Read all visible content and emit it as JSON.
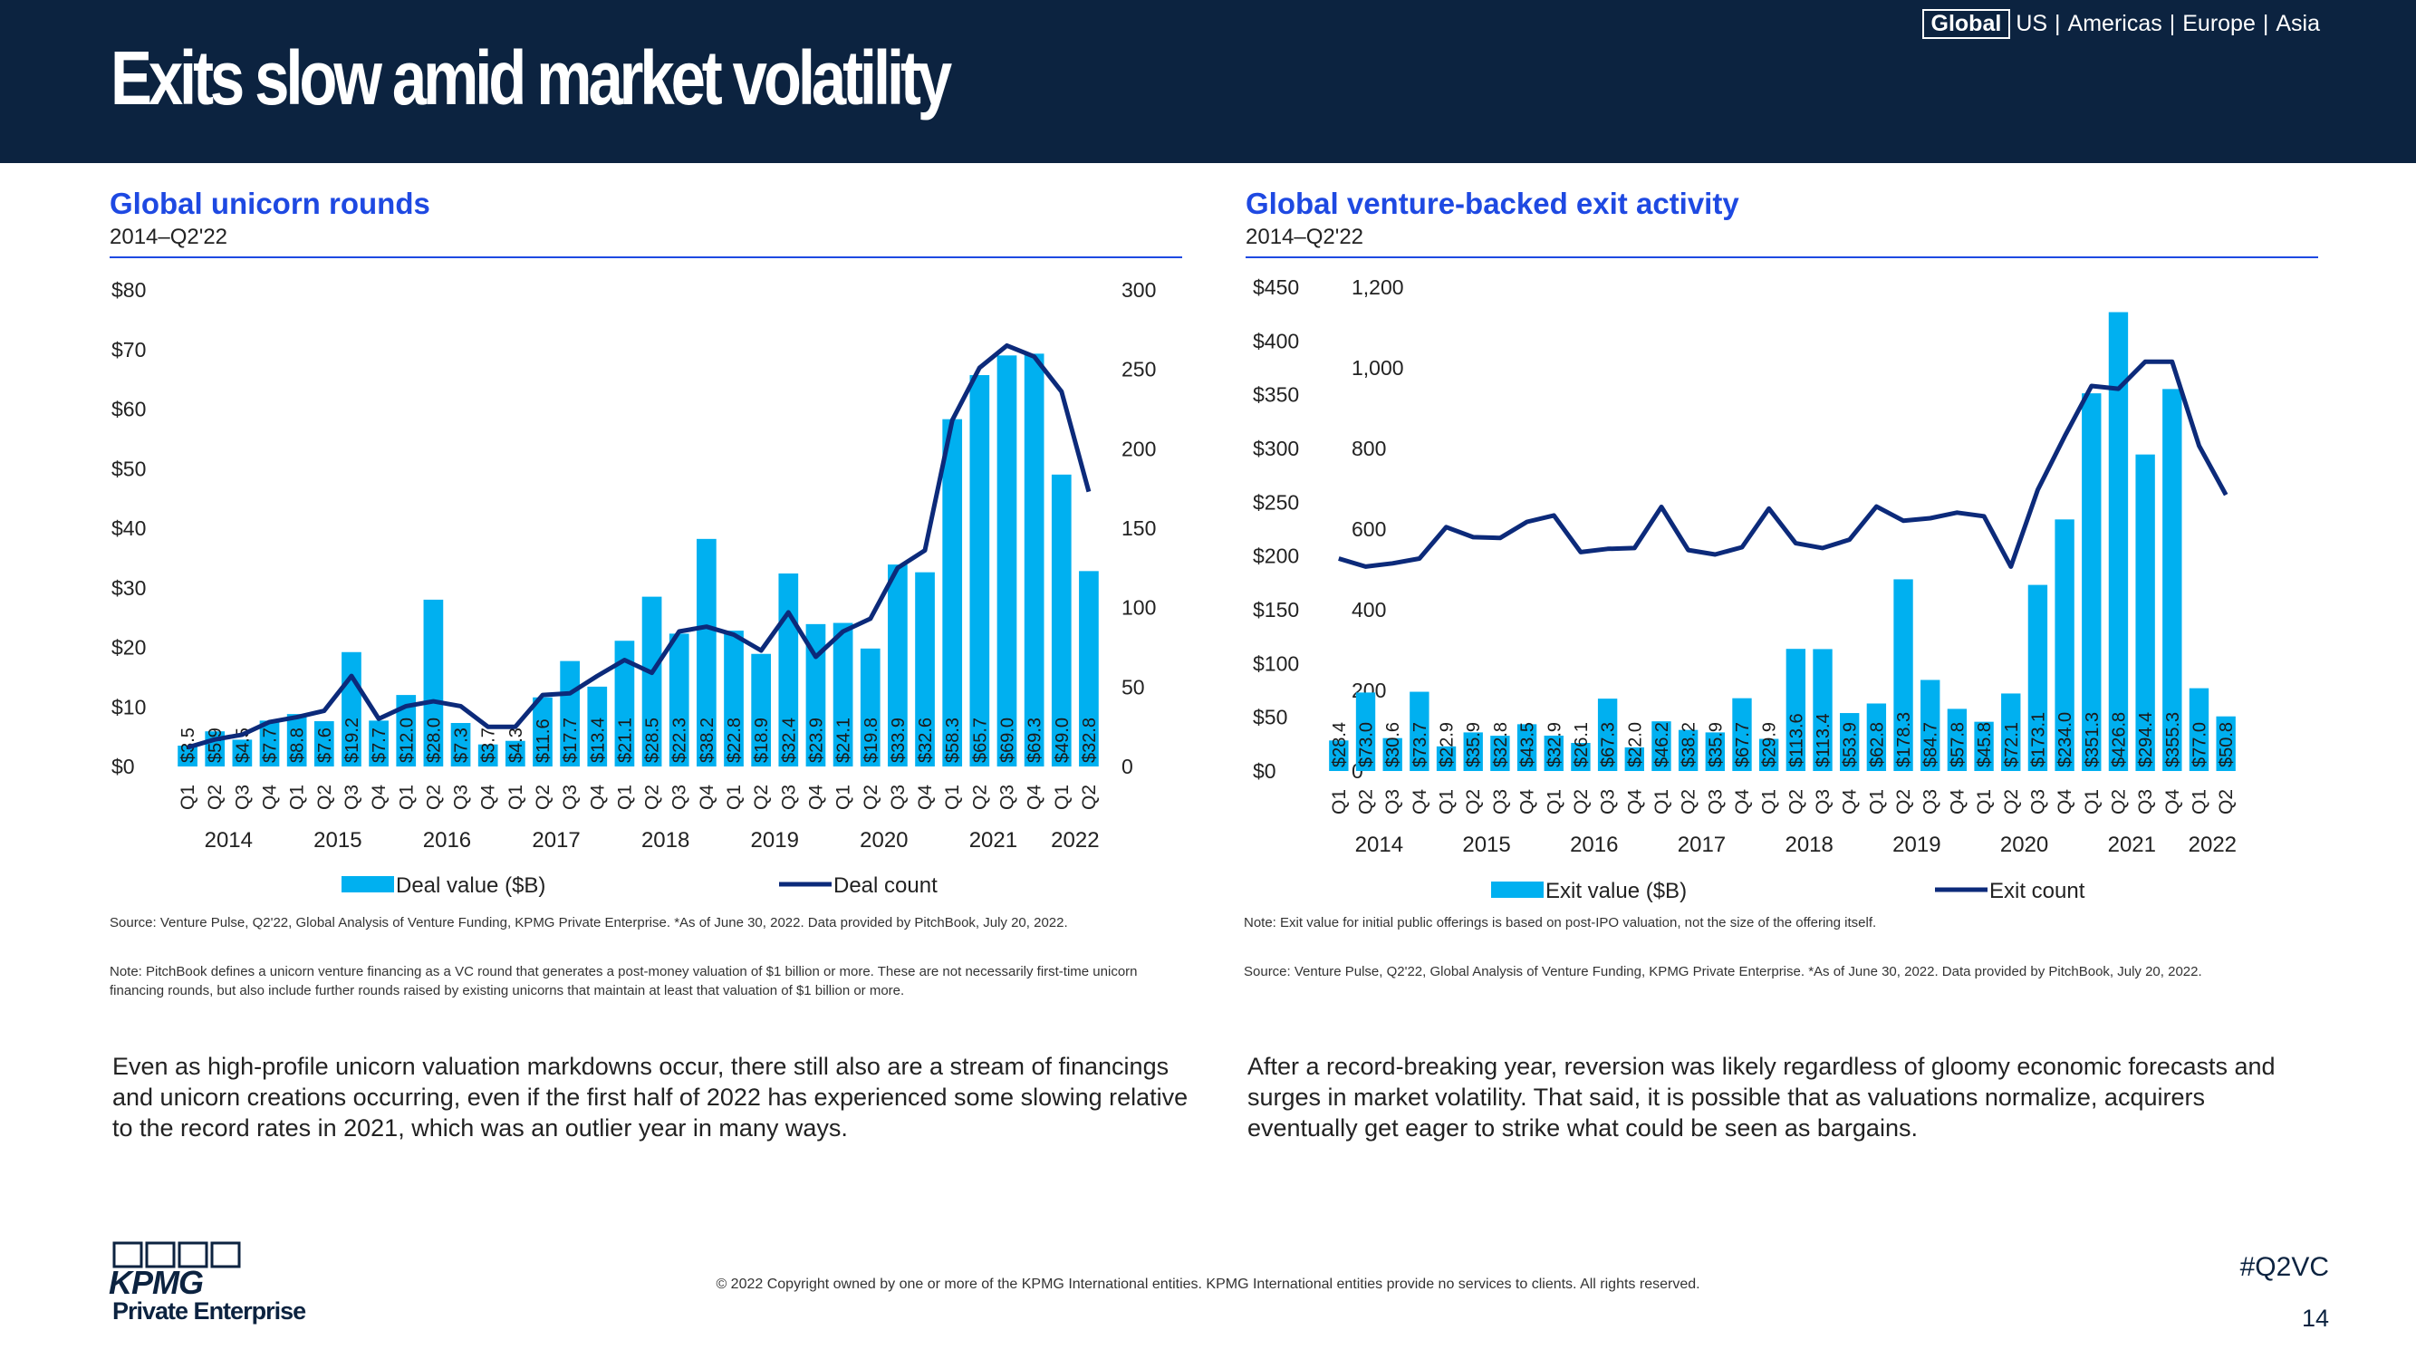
{
  "page_title": "Exits slow amid market volatility",
  "region_nav": {
    "selected": "Global",
    "items": [
      "US",
      "Americas",
      "Europe",
      "Asia"
    ]
  },
  "colors": {
    "header": "#0c2340",
    "bar": "#00b0f0",
    "line": "#0c2a7a",
    "title": "#1e49e2"
  },
  "left": {
    "title": "Global unicorn rounds",
    "subtitle": "2014–Q2'22",
    "note_source": "Source: Venture Pulse, Q2'22, Global Analysis of Venture Funding, KPMG Private Enterprise. *As of June 30, 2022. Data provided by PitchBook, July 20, 2022.",
    "note_def": "Note: PitchBook defines a unicorn venture financing as a VC round that generates a post-money valuation of $1 billion or more. These are not necessarily first-time unicorn financing rounds, but also include further rounds raised by existing unicorns that maintain at least that valuation of $1 billion or more.",
    "body": "Even as high-profile unicorn valuation markdowns occur, there still also are a stream of financings and unicorn creations occurring, even if the first half of 2022 has experienced some slowing relative to the record rates in 2021, which was an outlier year in many ways."
  },
  "right": {
    "title": "Global venture-backed exit activity",
    "subtitle": "2014–Q2'22",
    "note_exit": "Note: Exit value for initial public offerings is based on post-IPO valuation, not the size of the offering itself.",
    "note_source": "Source: Venture Pulse, Q2'22, Global Analysis of Venture Funding, KPMG Private Enterprise. *As of June 30, 2022. Data provided by PitchBook, July 20, 2022.",
    "body": "After a record-breaking year, reversion was likely regardless of gloomy economic forecasts and surges in market volatility. That said, it is possible that as valuations normalize, acquirers eventually get eager to strike what could be seen as bargains."
  },
  "footer": {
    "copyright": "© 2022 Copyright owned by one or more of the KPMG International entities. KPMG International entities provide no services to clients. All rights reserved.",
    "hashtag": "#Q2VC",
    "page_number": "14",
    "logo_text": "KPMG",
    "logo_sub": "Private Enterprise"
  },
  "chart_data": [
    {
      "type": "bar",
      "title": "Global unicorn rounds",
      "categories": [
        "Q1",
        "Q2",
        "Q3",
        "Q4",
        "Q1",
        "Q2",
        "Q3",
        "Q4",
        "Q1",
        "Q2",
        "Q3",
        "Q4",
        "Q1",
        "Q2",
        "Q3",
        "Q4",
        "Q1",
        "Q2",
        "Q3",
        "Q4",
        "Q1",
        "Q2",
        "Q3",
        "Q4",
        "Q1",
        "Q2",
        "Q3",
        "Q4",
        "Q1",
        "Q2",
        "Q3",
        "Q4",
        "Q1",
        "Q2"
      ],
      "years": [
        "2014",
        "2015",
        "2016",
        "2017",
        "2018",
        "2019",
        "2020",
        "2021",
        "2022"
      ],
      "series": [
        {
          "name": "Deal value ($B)",
          "axis": "left",
          "values": [
            3.5,
            5.9,
            4.5,
            7.7,
            8.8,
            7.6,
            19.2,
            7.7,
            12.0,
            28.0,
            7.3,
            3.7,
            4.3,
            11.6,
            17.7,
            13.4,
            21.1,
            28.5,
            22.3,
            38.2,
            22.8,
            18.9,
            32.4,
            23.9,
            24.1,
            19.8,
            33.9,
            32.6,
            58.3,
            65.7,
            69.0,
            69.3,
            49.0,
            32.8
          ],
          "labels": [
            "$3.5",
            "$5.9",
            "$4.5",
            "$7.7",
            "$8.8",
            "$7.6",
            "$19.2",
            "$7.7",
            "$12.0",
            "$28.0",
            "$7.3",
            "$3.7",
            "$4.3",
            "$11.6",
            "$17.7",
            "$13.4",
            "$21.1",
            "$28.5",
            "$22.3",
            "$38.2",
            "$22.8",
            "$18.9",
            "$32.4",
            "$23.9",
            "$24.1",
            "$19.8",
            "$33.9",
            "$32.6",
            "$58.3",
            "$65.7",
            "$69.0",
            "$69.3",
            "$49.0",
            "$32.8"
          ]
        },
        {
          "name": "Deal count",
          "axis": "right",
          "type": "line",
          "values": [
            12,
            17,
            20,
            28,
            31,
            35,
            57,
            30,
            38,
            41,
            38,
            25,
            25,
            45,
            46,
            57,
            67,
            59,
            85,
            88,
            83,
            73,
            97,
            69,
            85,
            93,
            125,
            136,
            218,
            251,
            265,
            258,
            236,
            173
          ]
        }
      ],
      "y_left": {
        "min": 0,
        "max": 80,
        "ticks": [
          "$0",
          "$10",
          "$20",
          "$30",
          "$40",
          "$50",
          "$60",
          "$70",
          "$80"
        ]
      },
      "y_right": {
        "min": 0,
        "max": 300,
        "ticks": [
          "0",
          "50",
          "100",
          "150",
          "200",
          "250",
          "300"
        ]
      },
      "legend": [
        "Deal value ($B)",
        "Deal count"
      ]
    },
    {
      "type": "bar",
      "title": "Global venture-backed exit activity",
      "categories": [
        "Q1",
        "Q2",
        "Q3",
        "Q4",
        "Q1",
        "Q2",
        "Q3",
        "Q4",
        "Q1",
        "Q2",
        "Q3",
        "Q4",
        "Q1",
        "Q2",
        "Q3",
        "Q4",
        "Q1",
        "Q2",
        "Q3",
        "Q4",
        "Q1",
        "Q2",
        "Q3",
        "Q4",
        "Q1",
        "Q2",
        "Q3",
        "Q4",
        "Q1",
        "Q2",
        "Q3",
        "Q4",
        "Q1",
        "Q2"
      ],
      "years": [
        "2014",
        "2015",
        "2016",
        "2017",
        "2018",
        "2019",
        "2020",
        "2021",
        "2022"
      ],
      "series": [
        {
          "name": "Exit value ($B)",
          "axis": "left",
          "values": [
            28.4,
            73.0,
            30.6,
            73.7,
            22.9,
            35.9,
            32.8,
            43.5,
            32.9,
            26.1,
            67.3,
            22.0,
            46.2,
            38.2,
            35.9,
            67.7,
            29.9,
            113.6,
            113.4,
            53.9,
            62.8,
            178.3,
            84.7,
            57.8,
            45.8,
            72.1,
            173.1,
            234.0,
            351.3,
            426.8,
            294.4,
            355.3,
            77.0,
            50.8
          ],
          "labels": [
            "$28.4",
            "$73.0",
            "$30.6",
            "$73.7",
            "$22.9",
            "$35.9",
            "$32.8",
            "$43.5",
            "$32.9",
            "$26.1",
            "$67.3",
            "$22.0",
            "$46.2",
            "$38.2",
            "$35.9",
            "$67.7",
            "$29.9",
            "$113.6",
            "$113.4",
            "$53.9",
            "$62.8",
            "$178.3",
            "$84.7",
            "$57.8",
            "$45.8",
            "$72.1",
            "$173.1",
            "$234.0",
            "$351.3",
            "$426.8",
            "$294.4",
            "$355.3",
            "$77.0",
            "$50.8"
          ]
        },
        {
          "name": "Exit count",
          "axis": "right",
          "type": "line",
          "values": [
            527,
            507,
            515,
            527,
            605,
            580,
            578,
            618,
            634,
            543,
            551,
            553,
            655,
            548,
            537,
            555,
            651,
            565,
            553,
            574,
            656,
            621,
            627,
            641,
            632,
            507,
            697,
            830,
            955,
            948,
            1015,
            1015,
            807,
            685
          ]
        }
      ],
      "y_left": {
        "min": 0,
        "max": 450,
        "ticks": [
          "$0",
          "$50",
          "$100",
          "$150",
          "$200",
          "$250",
          "$300",
          "$350",
          "$400",
          "$450"
        ]
      },
      "y_right": {
        "min": 0,
        "max": 1200,
        "ticks": [
          "0",
          "200",
          "400",
          "600",
          "800",
          "1,000",
          "1,200"
        ]
      },
      "legend": [
        "Exit value ($B)",
        "Exit count"
      ]
    }
  ]
}
